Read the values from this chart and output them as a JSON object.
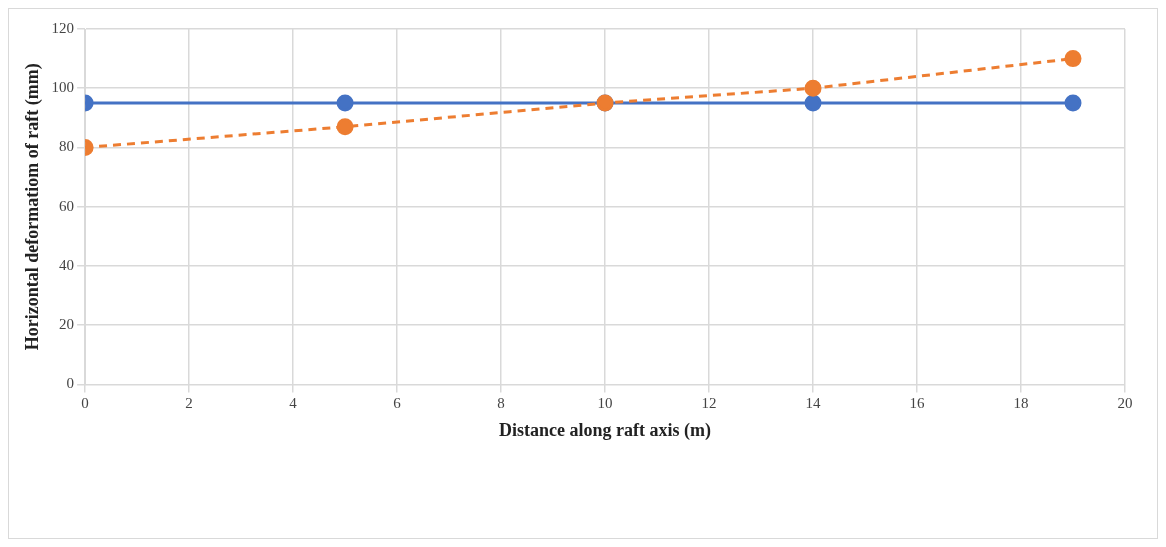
{
  "chart_data": {
    "type": "line",
    "xlabel": "Distance along raft axis (m)",
    "ylabel": "Horizontal deformatiom of raft (mm)",
    "xlim": [
      0,
      20
    ],
    "xticks": [
      0,
      2,
      4,
      6,
      8,
      10,
      12,
      14,
      16,
      18,
      20
    ],
    "ylim": [
      0,
      120
    ],
    "yticks": [
      0,
      20,
      40,
      60,
      80,
      100,
      120
    ],
    "grid": true,
    "marker": "circle",
    "series": [
      {
        "color": "#4472c4",
        "line_style": "solid",
        "x": [
          0,
          5,
          10,
          14,
          19
        ],
        "values": [
          95,
          95,
          95,
          95,
          95
        ]
      },
      {
        "color": "#ed7d31",
        "line_style": "dashed",
        "x": [
          0,
          5,
          10,
          14,
          19
        ],
        "values": [
          80,
          87,
          95,
          100,
          110
        ]
      }
    ]
  }
}
